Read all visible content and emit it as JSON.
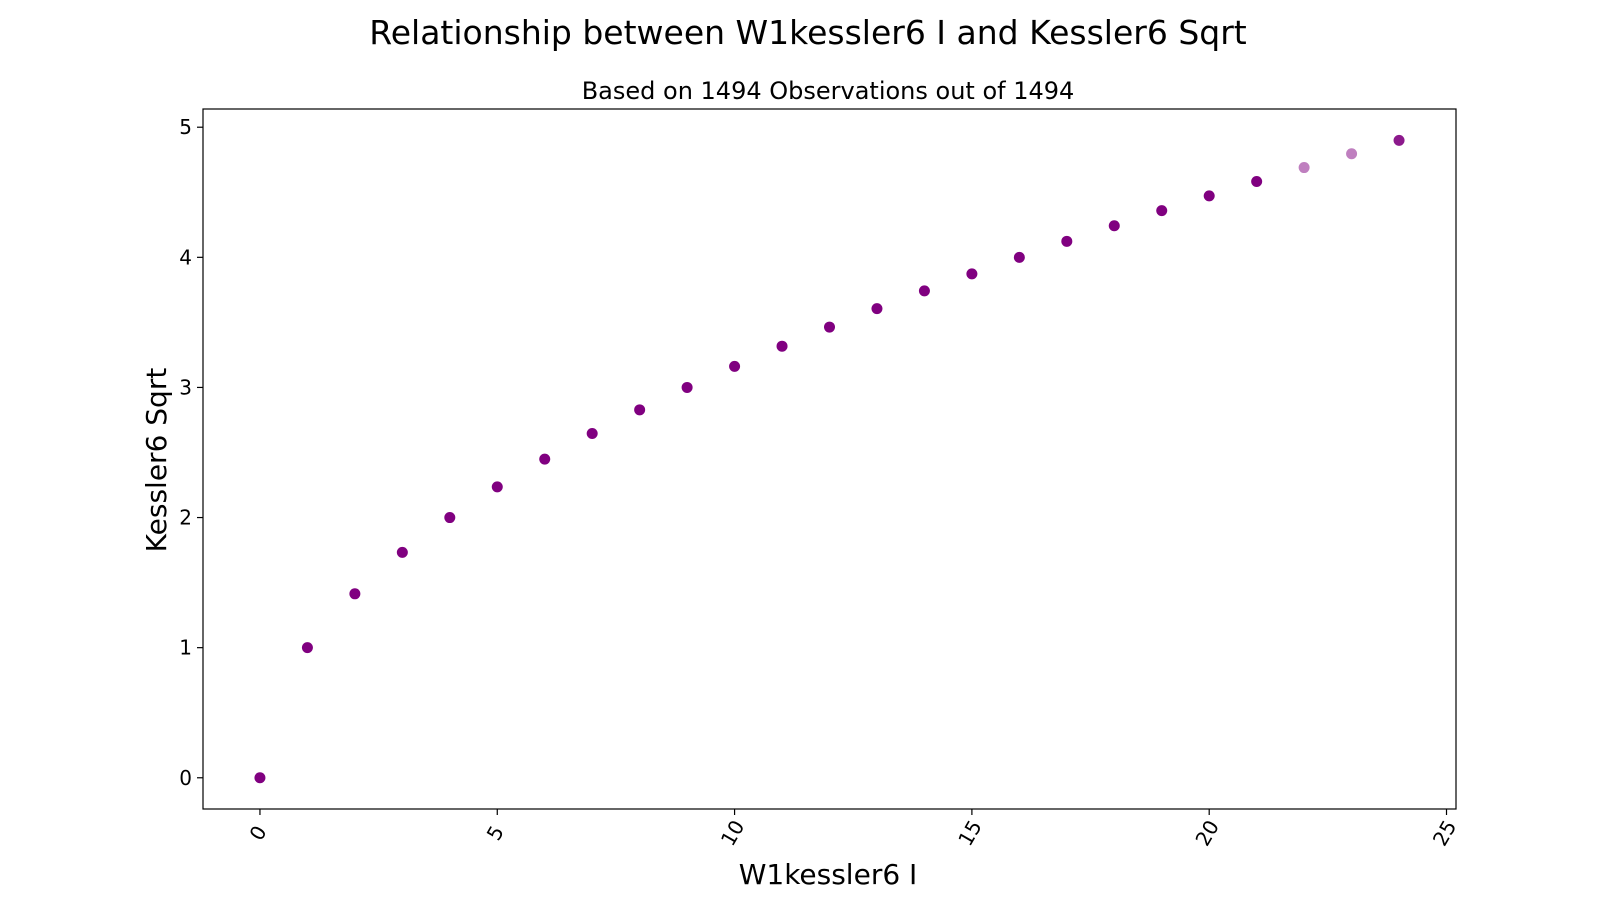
{
  "chart_data": {
    "type": "scatter",
    "title": "Relationship between W1kessler6 I and Kessler6 Sqrt",
    "subtitle": "Based on 1494 Observations out of 1494",
    "xlabel": "W1kessler6 I",
    "ylabel": "Kessler6 Sqrt",
    "xlim": [
      -1.2,
      25.2
    ],
    "ylim": [
      -0.24,
      5.14
    ],
    "xticks": [
      0,
      5,
      10,
      15,
      20,
      25
    ],
    "yticks": [
      0,
      1,
      2,
      3,
      4,
      5
    ],
    "xtick_rotation": -60,
    "grid": false,
    "legend": "none",
    "marker_color": "#800080",
    "points": [
      {
        "x": 0,
        "y": 0.0,
        "alpha": 1.0
      },
      {
        "x": 1,
        "y": 1.0,
        "alpha": 1.0
      },
      {
        "x": 2,
        "y": 1.414,
        "alpha": 1.0
      },
      {
        "x": 3,
        "y": 1.732,
        "alpha": 1.0
      },
      {
        "x": 4,
        "y": 2.0,
        "alpha": 1.0
      },
      {
        "x": 5,
        "y": 2.236,
        "alpha": 1.0
      },
      {
        "x": 6,
        "y": 2.449,
        "alpha": 1.0
      },
      {
        "x": 7,
        "y": 2.646,
        "alpha": 1.0
      },
      {
        "x": 8,
        "y": 2.828,
        "alpha": 1.0
      },
      {
        "x": 9,
        "y": 3.0,
        "alpha": 1.0
      },
      {
        "x": 10,
        "y": 3.162,
        "alpha": 1.0
      },
      {
        "x": 11,
        "y": 3.317,
        "alpha": 1.0
      },
      {
        "x": 12,
        "y": 3.464,
        "alpha": 1.0
      },
      {
        "x": 13,
        "y": 3.606,
        "alpha": 1.0
      },
      {
        "x": 14,
        "y": 3.742,
        "alpha": 1.0
      },
      {
        "x": 15,
        "y": 3.873,
        "alpha": 1.0
      },
      {
        "x": 16,
        "y": 4.0,
        "alpha": 1.0
      },
      {
        "x": 17,
        "y": 4.123,
        "alpha": 1.0
      },
      {
        "x": 18,
        "y": 4.243,
        "alpha": 1.0
      },
      {
        "x": 19,
        "y": 4.359,
        "alpha": 1.0
      },
      {
        "x": 20,
        "y": 4.472,
        "alpha": 1.0
      },
      {
        "x": 21,
        "y": 4.583,
        "alpha": 1.0
      },
      {
        "x": 22,
        "y": 4.69,
        "alpha": 0.5
      },
      {
        "x": 23,
        "y": 4.796,
        "alpha": 0.5
      },
      {
        "x": 24,
        "y": 4.899,
        "alpha": 0.9
      }
    ]
  }
}
